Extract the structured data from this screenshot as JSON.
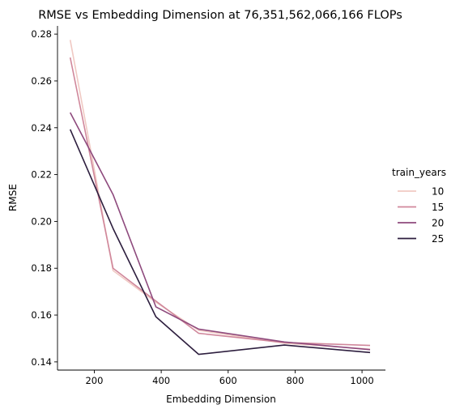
{
  "chart_data": {
    "type": "line",
    "title": "RMSE vs Embedding Dimension at 76,351,562,066,166 FLOPs",
    "xlabel": "Embedding Dimension",
    "ylabel": "RMSE",
    "xlim": [
      90,
      1070
    ],
    "ylim": [
      0.1365,
      0.2835
    ],
    "xticks": [
      200,
      400,
      600,
      800,
      1000
    ],
    "yticks": [
      0.14,
      0.16,
      0.18,
      0.2,
      0.22,
      0.24,
      0.26,
      0.28
    ],
    "ytick_labels": [
      "0.14",
      "0.16",
      "0.18",
      "0.20",
      "0.22",
      "0.24",
      "0.26",
      "0.28"
    ],
    "grid": false,
    "legend": {
      "title": "train_years",
      "placement": "right"
    },
    "x": [
      128,
      256,
      384,
      512,
      768,
      1024
    ],
    "series": [
      {
        "name": "10",
        "color": "#f0c9c3",
        "values": [
          0.2775,
          0.179,
          0.1655,
          0.1535,
          0.148,
          0.1455
        ]
      },
      {
        "name": "15",
        "color": "#d0879b",
        "values": [
          0.27,
          0.18,
          0.166,
          0.1522,
          0.1483,
          0.147
        ]
      },
      {
        "name": "20",
        "color": "#8e4a7d",
        "values": [
          0.2465,
          0.2115,
          0.1635,
          0.154,
          0.1485,
          0.1452
        ]
      },
      {
        "name": "25",
        "color": "#2d1e3e",
        "values": [
          0.2393,
          0.197,
          0.1593,
          0.1432,
          0.1472,
          0.144
        ]
      }
    ]
  }
}
